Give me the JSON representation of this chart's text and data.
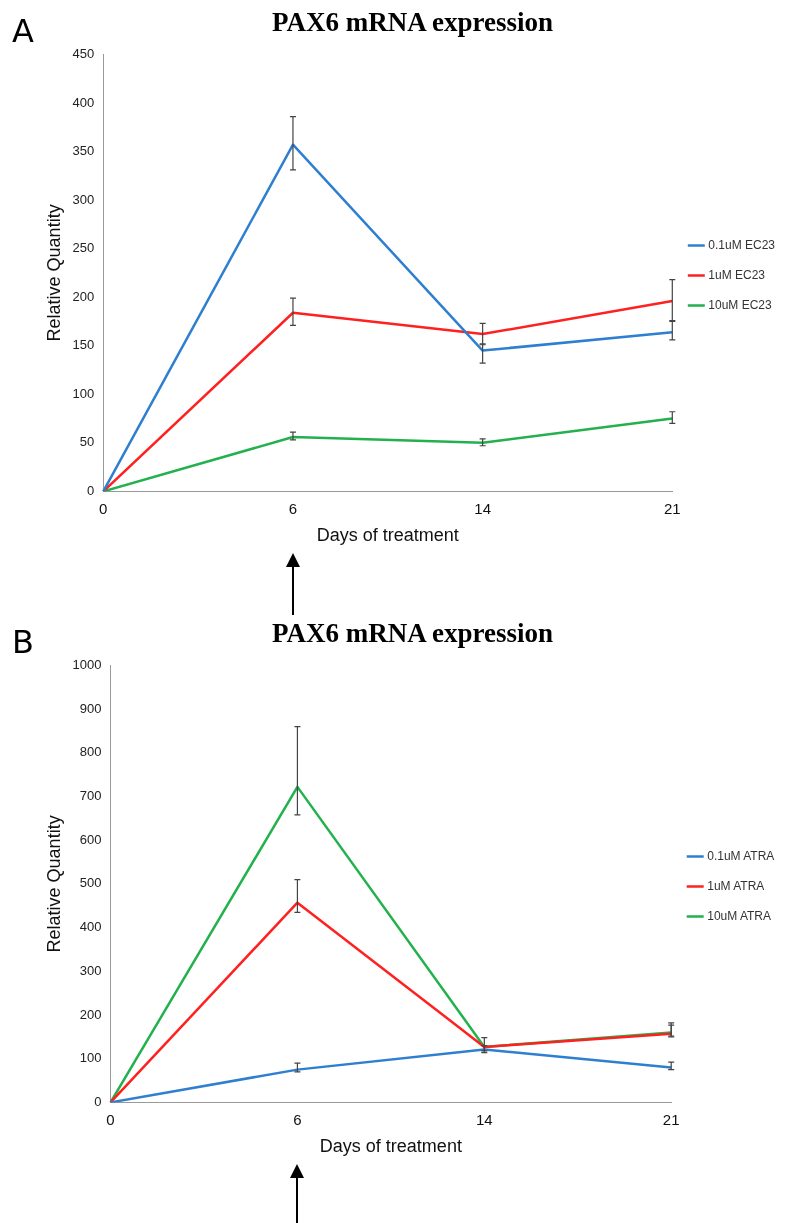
{
  "chart_data": [
    {
      "type": "line",
      "title": "PAX6 mRNA expression",
      "xlabel": "Days of treatment",
      "ylabel": "Relative Quantity",
      "categories": [
        "0",
        "6",
        "14",
        "21"
      ],
      "ylim": [
        0,
        450
      ],
      "yticks": [
        0,
        50,
        100,
        150,
        200,
        250,
        300,
        350,
        400,
        450
      ],
      "legend": "right",
      "grid": false,
      "annotations": [
        "A"
      ],
      "series": [
        {
          "name": "0.1uM EC23",
          "color": "#2e7fd0",
          "values": [
            0,
            357,
            145,
            164
          ],
          "errors": [
            null,
            [
              331,
              386
            ],
            [
              132,
              152
            ],
            [
              156,
              175
            ]
          ]
        },
        {
          "name": "1uM EC23",
          "color": "#ff2020",
          "values": [
            0,
            184,
            162,
            196
          ],
          "errors": [
            null,
            [
              171,
              199
            ],
            [
              151,
              173
            ],
            [
              176,
              218
            ]
          ]
        },
        {
          "name": "10uM EC23",
          "color": "#22b14c",
          "values": [
            0,
            56,
            50,
            75
          ],
          "errors": [
            null,
            [
              53,
              61
            ],
            [
              47,
              54
            ],
            [
              70,
              82
            ]
          ]
        }
      ]
    },
    {
      "type": "line",
      "title": "PAX6 mRNA expression",
      "xlabel": "Days of treatment",
      "ylabel": "Relative Quantity",
      "categories": [
        "0",
        "6",
        "14",
        "21"
      ],
      "ylim": [
        0,
        1000
      ],
      "yticks": [
        0,
        100,
        200,
        300,
        400,
        500,
        600,
        700,
        800,
        900,
        1000
      ],
      "legend": "right",
      "grid": false,
      "annotations": [
        "B"
      ],
      "series": [
        {
          "name": "0.1uM ATRA",
          "color": "#2e7fd0",
          "values": [
            0,
            75,
            121,
            80
          ],
          "errors": [
            null,
            [
              70,
              90
            ],
            [
              114,
              130
            ],
            [
              75,
              92
            ]
          ]
        },
        {
          "name": "1uM ATRA",
          "color": "#ff2020",
          "values": [
            0,
            457,
            127,
            157
          ],
          "errors": [
            null,
            [
              435,
              510
            ],
            [
              118,
              148
            ],
            [
              150,
              177
            ]
          ]
        },
        {
          "name": "10uM ATRA",
          "color": "#22b14c",
          "values": [
            0,
            722,
            127,
            160
          ],
          "errors": [
            null,
            [
              658,
              860
            ],
            null,
            [
              152,
              182
            ]
          ]
        }
      ]
    }
  ]
}
